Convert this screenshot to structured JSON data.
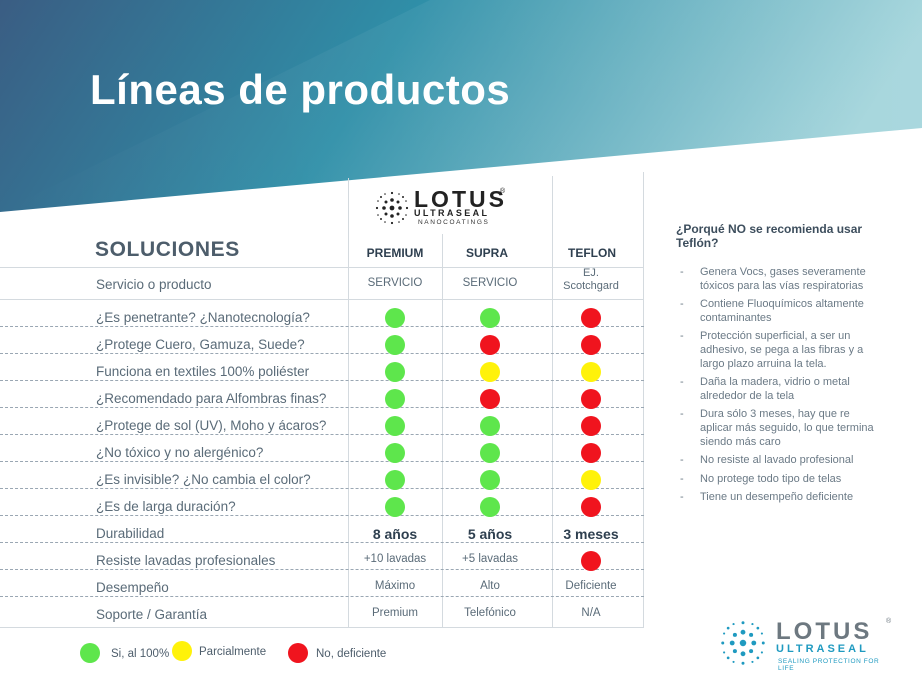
{
  "title": "Líneas de productos",
  "colors": {
    "green": "#5ee64c",
    "red": "#f0141e",
    "yellow": "#fff20a",
    "accent": "#1f9ac0"
  },
  "top_logo": {
    "word": "LOTUS",
    "mark": "®",
    "line1": "ULTRASEAL",
    "line2": "NANOCOATINGS"
  },
  "table": {
    "heading": "SOLUCIONES",
    "columns": [
      "PREMIUM",
      "SUPRA",
      "TEFLON"
    ],
    "rows": [
      {
        "label": "Servicio o producto",
        "values": [
          "SERVICIO",
          "SERVICIO",
          "EJ. Scotchgard"
        ]
      },
      {
        "label": "¿Es penetrante? ¿Nanotecnología?",
        "status": [
          "green",
          "green",
          "red"
        ]
      },
      {
        "label": "¿Protege Cuero, Gamuza, Suede?",
        "status": [
          "green",
          "red",
          "red"
        ]
      },
      {
        "label": "Funciona en textiles 100% poliéster",
        "status": [
          "green",
          "yellow",
          "yellow"
        ]
      },
      {
        "label": "¿Recomendado para Alfombras finas?",
        "status": [
          "green",
          "red",
          "red"
        ]
      },
      {
        "label": "¿Protege de sol (UV), Moho y ácaros?",
        "status": [
          "green",
          "green",
          "red"
        ]
      },
      {
        "label": "¿No tóxico y no alergénico?",
        "status": [
          "green",
          "green",
          "red"
        ]
      },
      {
        "label": "¿Es invisible? ¿No cambia el color?",
        "status": [
          "green",
          "green",
          "yellow"
        ]
      },
      {
        "label": "¿Es de larga duración?",
        "status": [
          "green",
          "green",
          "red"
        ]
      },
      {
        "label": "Durabilidad",
        "values": [
          "8 años",
          "5 años",
          "3 meses"
        ]
      },
      {
        "label": "Resiste lavadas profesionales",
        "values": [
          "+10 lavadas",
          "+5 lavadas",
          ""
        ],
        "status": [
          null,
          null,
          "red"
        ]
      },
      {
        "label": "Desempeño",
        "values": [
          "Máximo",
          "Alto",
          "Deficiente"
        ]
      },
      {
        "label": "Soporte / Garantía",
        "values": [
          "Premium",
          "Telefónico",
          "N/A"
        ]
      }
    ]
  },
  "legend": [
    {
      "color": "green",
      "label": "Si, al 100%"
    },
    {
      "color": "yellow",
      "label": "Parcialmente"
    },
    {
      "color": "red",
      "label": "No, deficiente"
    }
  ],
  "side": {
    "question": "¿Porqué NO se recomienda usar Teflón?",
    "items": [
      "Genera Vocs, gases severamente tóxicos para las vías respiratorias",
      "Contiene Fluoquímicos altamente contaminantes",
      "Protección superficial, a ser un adhesivo, se pega a las fibras y a largo plazo arruina la tela.",
      "Daña la madera, vidrio o metal alrededor de la tela",
      "Dura sólo 3 meses, hay que re aplicar más seguido, lo que termina siendo más caro",
      "No resiste al lavado profesional",
      "No protege todo tipo de telas",
      "Tiene un desempeño deficiente"
    ],
    "bullet": "-"
  },
  "bottom_logo": {
    "word": "LOTUS",
    "mark": "®",
    "line1": "ULTRASEAL",
    "line2": "SEALING PROTECTION FOR LIFE"
  }
}
